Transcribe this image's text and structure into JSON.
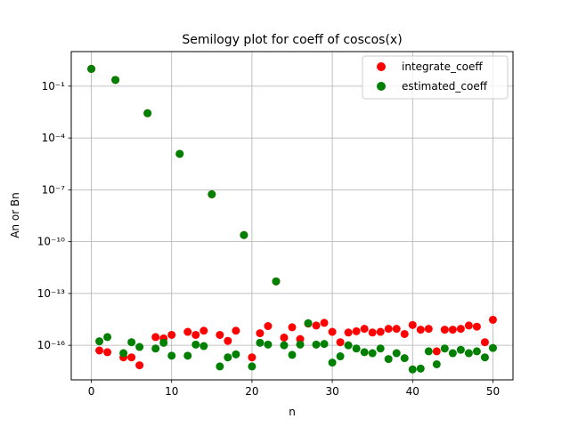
{
  "chart_data": {
    "type": "scatter",
    "title": "Semilogy plot for coeff of coscos(x)",
    "xlabel": "n",
    "ylabel": "An or Bn",
    "yscale": "log",
    "xlim": [
      -2.5,
      52.5
    ],
    "ylim": [
      1e-18,
      10
    ],
    "xticks": [
      0,
      10,
      20,
      30,
      40,
      50
    ],
    "xtick_labels": [
      "0",
      "10",
      "20",
      "30",
      "40",
      "50"
    ],
    "yticks": [
      1e-16,
      1e-13,
      1e-10,
      1e-07,
      0.0001,
      0.1
    ],
    "ytick_labels": [
      "10⁻¹⁶",
      "10⁻¹³",
      "10⁻¹⁰",
      "10⁻⁷",
      "10⁻⁴",
      "10⁻¹"
    ],
    "grid": true,
    "legend_position": "top-right",
    "series": [
      {
        "name": "integrate_coeff",
        "color": "#ff0000",
        "x": [
          0,
          1,
          2,
          3,
          4,
          5,
          6,
          7,
          8,
          9,
          10,
          11,
          12,
          13,
          14,
          15,
          16,
          17,
          18,
          19,
          20,
          21,
          22,
          23,
          24,
          25,
          26,
          27,
          28,
          29,
          30,
          31,
          32,
          33,
          34,
          35,
          36,
          37,
          38,
          39,
          40,
          41,
          42,
          43,
          44,
          45,
          46,
          47,
          48,
          49,
          50
        ],
        "y": [
          1.0,
          5e-17,
          4e-17,
          0.23,
          2e-17,
          2e-17,
          7e-18,
          0.0027,
          3e-16,
          2.5e-16,
          4e-16,
          1.2e-05,
          6e-16,
          4e-16,
          7e-16,
          5.5e-08,
          4e-16,
          1.8e-16,
          7e-16,
          2.4e-10,
          2e-17,
          5e-16,
          1.3e-15,
          5e-13,
          2.8e-16,
          1.1e-15,
          2.3e-16,
          1.8e-15,
          1.4e-15,
          2e-15,
          6e-16,
          1.5e-16,
          5.5e-16,
          6.5e-16,
          9e-16,
          5.5e-16,
          6e-16,
          9e-16,
          9e-16,
          4.5e-16,
          1.5e-15,
          8e-16,
          9e-16,
          4.5e-17,
          8e-16,
          8e-16,
          9e-16,
          1.4e-15,
          1.2e-15,
          1.5e-16,
          3e-15
        ]
      },
      {
        "name": "estimated_coeff",
        "color": "#008000",
        "x": [
          0,
          1,
          2,
          3,
          4,
          5,
          6,
          7,
          8,
          9,
          10,
          11,
          12,
          13,
          14,
          15,
          16,
          17,
          18,
          19,
          20,
          21,
          22,
          23,
          24,
          25,
          26,
          27,
          28,
          29,
          30,
          31,
          32,
          33,
          34,
          35,
          36,
          37,
          38,
          39,
          40,
          41,
          42,
          43,
          44,
          45,
          46,
          47,
          48,
          49,
          50
        ],
        "y": [
          1.0,
          1.7e-16,
          3e-16,
          0.23,
          3.5e-17,
          1.5e-16,
          8e-17,
          0.0027,
          6.5e-17,
          1.4e-16,
          2.5e-17,
          1.2e-05,
          2.5e-17,
          1.1e-16,
          9e-17,
          5.5e-08,
          6e-18,
          2e-17,
          3e-17,
          2.4e-10,
          6e-18,
          1.4e-16,
          1.1e-16,
          5e-13,
          1e-16,
          2.8e-17,
          1.1e-16,
          1.9e-15,
          1.1e-16,
          1.2e-16,
          1e-17,
          2.3e-17,
          1e-16,
          6.5e-17,
          4e-17,
          3.5e-17,
          6.5e-17,
          1.6e-17,
          3.5e-17,
          1.8e-17,
          4e-18,
          4.5e-18,
          4.5e-17,
          8e-18,
          6.5e-17,
          3.5e-17,
          5.5e-17,
          3.5e-17,
          4.5e-17,
          2e-17,
          7e-17
        ]
      }
    ]
  }
}
